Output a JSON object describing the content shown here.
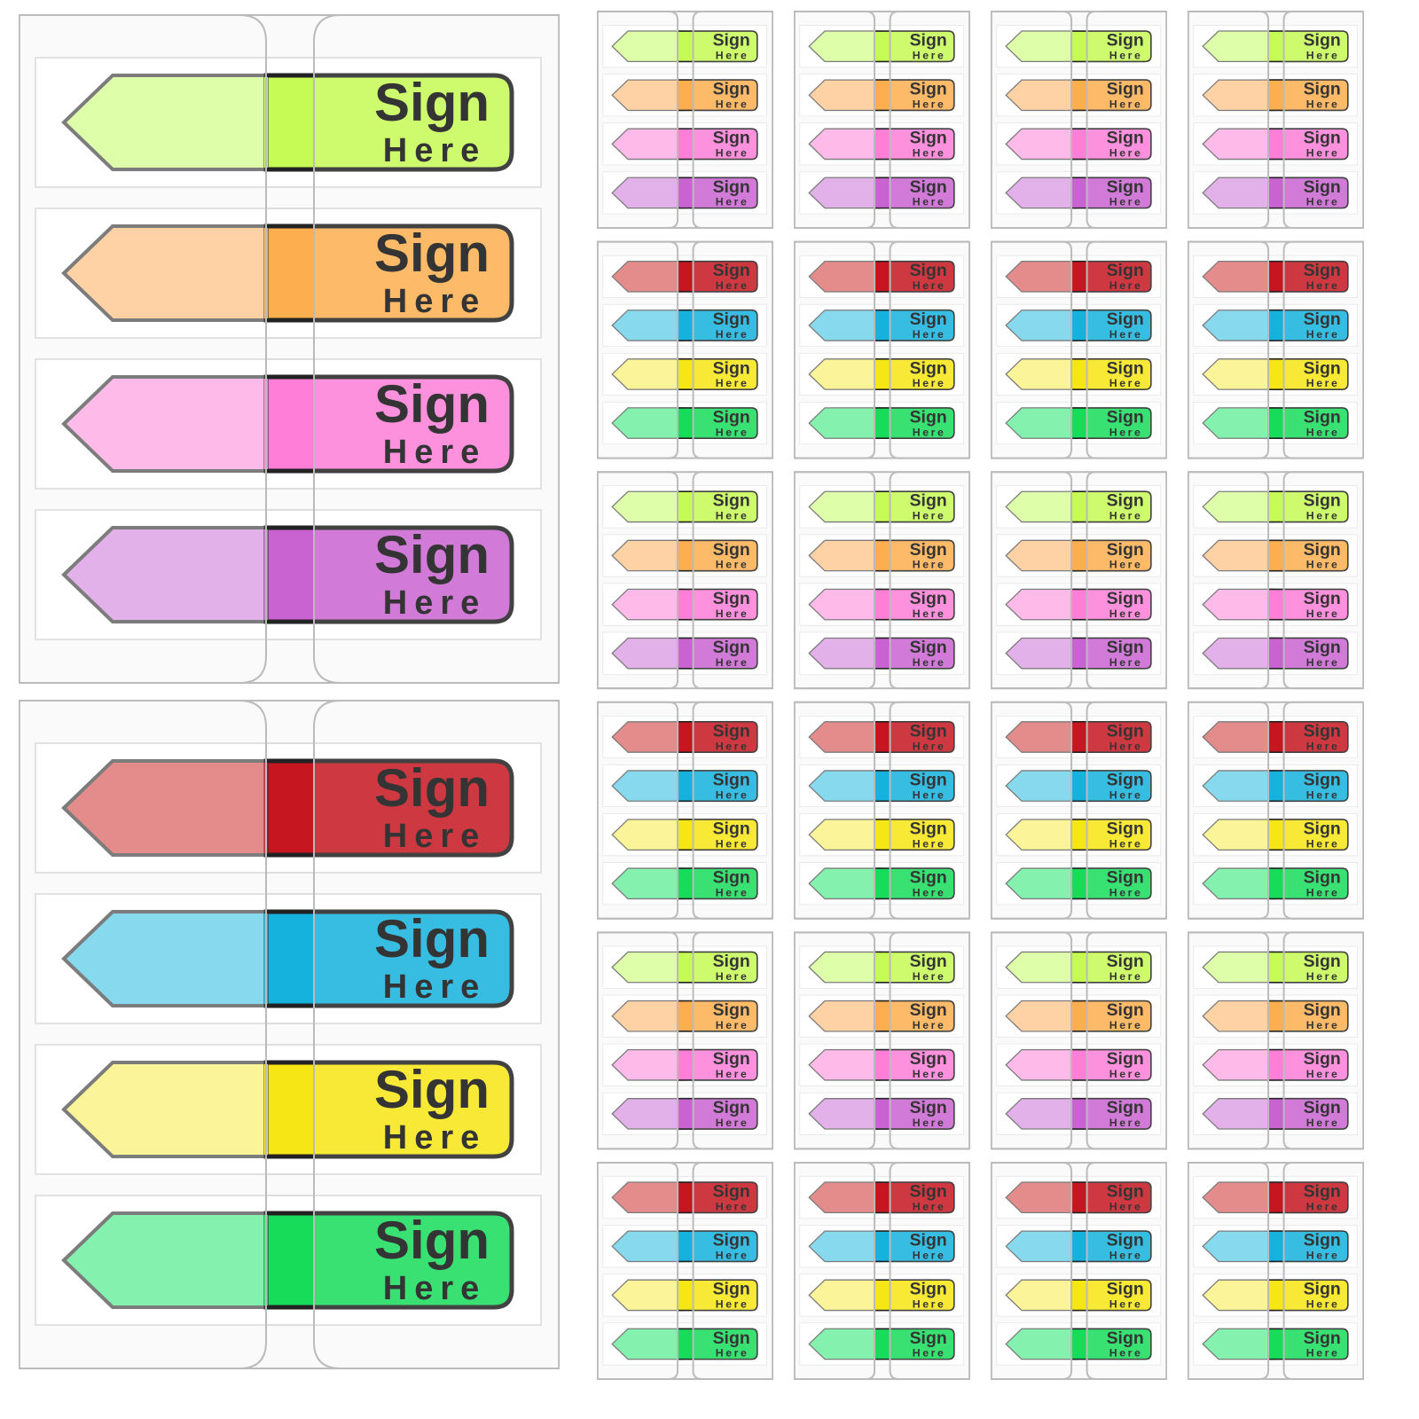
{
  "flag": {
    "line1": "Sign",
    "line2": "Here"
  }
}
